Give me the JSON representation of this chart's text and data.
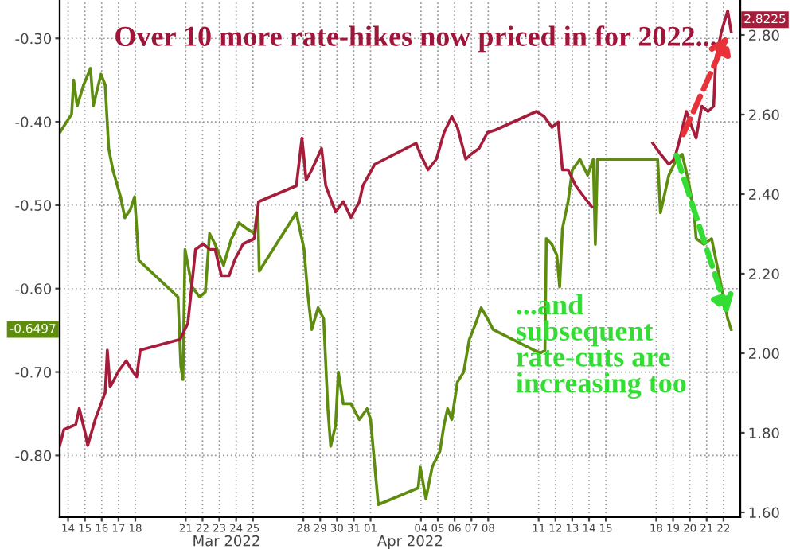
{
  "chart_data": {
    "type": "line",
    "title": "Over 10 more rate-hikes now priced in for 2022...",
    "annotations": [
      "...and\nsubsequent\nrate-cuts are\nincreasing too",
      "Mar 2022",
      "Apr 2022",
      "-0.6497",
      "2.8225"
    ],
    "xlim": [
      "2022-03-14",
      "2022-04-23T12:00"
    ],
    "xticks": [
      {
        "value": "2022-03-14T12:00",
        "label": "14"
      },
      {
        "value": "2022-03-15T12:00",
        "label": "15"
      },
      {
        "value": "2022-03-16T12:00",
        "label": "16"
      },
      {
        "value": "2022-03-17T12:00",
        "label": "17"
      },
      {
        "value": "2022-03-18T12:00",
        "label": "18"
      },
      {
        "value": "2022-03-21T12:00",
        "label": "21"
      },
      {
        "value": "2022-03-22T12:00",
        "label": "22"
      },
      {
        "value": "2022-03-23T12:00",
        "label": "23"
      },
      {
        "value": "2022-03-24T12:00",
        "label": "24"
      },
      {
        "value": "2022-03-25T12:00",
        "label": "25"
      },
      {
        "value": "2022-03-28T12:00",
        "label": "28"
      },
      {
        "value": "2022-03-29T12:00",
        "label": "29"
      },
      {
        "value": "2022-03-30T12:00",
        "label": "30"
      },
      {
        "value": "2022-03-31T12:00",
        "label": "31"
      },
      {
        "value": "2022-04-01T12:00",
        "label": "01"
      },
      {
        "value": "2022-04-04T12:00",
        "label": "04"
      },
      {
        "value": "2022-04-05T12:00",
        "label": "05"
      },
      {
        "value": "2022-04-06T12:00",
        "label": "06"
      },
      {
        "value": "2022-04-07T12:00",
        "label": "07"
      },
      {
        "value": "2022-04-08T12:00",
        "label": "08"
      },
      {
        "value": "2022-04-11T12:00",
        "label": "11"
      },
      {
        "value": "2022-04-12T12:00",
        "label": "12"
      },
      {
        "value": "2022-04-13T12:00",
        "label": "13"
      },
      {
        "value": "2022-04-14T12:00",
        "label": "14"
      },
      {
        "value": "2022-04-15T12:00",
        "label": "15"
      },
      {
        "value": "2022-04-18T12:00",
        "label": "18"
      },
      {
        "value": "2022-04-19T12:00",
        "label": "19"
      },
      {
        "value": "2022-04-20T12:00",
        "label": "20"
      },
      {
        "value": "2022-04-21T12:00",
        "label": "21"
      },
      {
        "value": "2022-04-22T12:00",
        "label": "22"
      }
    ],
    "ylim": [
      -0.874,
      -0.254
    ],
    "yticks": [
      {
        "value": -0.3,
        "label": "-0.30"
      },
      {
        "value": -0.4,
        "label": "-0.40"
      },
      {
        "value": -0.5,
        "label": "-0.50"
      },
      {
        "value": -0.6,
        "label": "-0.60"
      },
      {
        "value": -0.7,
        "label": "-0.70"
      },
      {
        "value": -0.8,
        "label": "-0.80"
      }
    ],
    "y2lim": [
      1.588,
      2.888
    ],
    "y2ticks": [
      {
        "value": 1.6,
        "label": "1.60"
      },
      {
        "value": 1.8,
        "label": "1.80"
      },
      {
        "value": 2.0,
        "label": "2.00"
      },
      {
        "value": 2.2,
        "label": "2.20"
      },
      {
        "value": 2.4,
        "label": "2.40"
      },
      {
        "value": 2.6,
        "label": "2.60"
      },
      {
        "value": 2.8,
        "label": "2.80"
      }
    ],
    "grid": true,
    "line_style": "solid",
    "series": [
      {
        "color": "#5e8c0e",
        "axis": "y",
        "x": [
          "2022-03-14T00:00",
          "2022-03-14T17:00",
          "2022-03-14T20:00",
          "2022-03-15T01:00",
          "2022-03-15T10:00",
          "2022-03-15T20:00",
          "2022-03-16T00:00",
          "2022-03-16T11:00",
          "2022-03-16T17:00",
          "2022-03-16T22:00",
          "2022-03-17T04:00",
          "2022-03-17T15:00",
          "2022-03-17T21:00",
          "2022-03-18T05:00",
          "2022-03-18T11:00",
          "2022-03-18T17:00",
          "2022-03-21T01:00",
          "2022-03-21T05:00",
          "2022-03-21T08:00",
          "2022-03-21T11:00",
          "2022-03-21T21:00",
          "2022-03-22T08:00",
          "2022-03-22T16:00",
          "2022-03-22T22:00",
          "2022-03-23T06:00",
          "2022-03-23T18:00",
          "2022-03-24T05:00",
          "2022-03-24T16:00",
          "2022-03-25T03:00",
          "2022-03-25T14:00",
          "2022-03-25T19:00",
          "2022-03-25T21:00",
          "2022-03-28T02:00",
          "2022-03-28T13:00",
          "2022-03-28T18:00",
          "2022-03-29T00:00",
          "2022-03-29T09:00",
          "2022-03-29T17:00",
          "2022-03-29T23:00",
          "2022-03-30T03:00",
          "2022-03-30T10:00",
          "2022-03-30T14:00",
          "2022-03-30T21:00",
          "2022-03-31T08:00",
          "2022-03-31T20:00",
          "2022-04-01T07:00",
          "2022-04-01T12:00",
          "2022-04-01T23:00",
          "2022-04-04T08:00",
          "2022-04-04T11:00",
          "2022-04-04T19:00",
          "2022-04-05T04:00",
          "2022-04-05T15:00",
          "2022-04-05T21:00",
          "2022-04-06T02:00",
          "2022-04-06T08:00",
          "2022-04-06T16:00",
          "2022-04-07T01:00",
          "2022-04-07T09:00",
          "2022-04-07T18:00",
          "2022-04-08T02:00",
          "2022-04-08T11:00",
          "2022-04-08T19:00",
          "2022-04-11T06:00",
          "2022-04-11T15:00",
          "2022-04-11T21:00",
          "2022-04-11T23:00",
          "2022-04-12T07:00",
          "2022-04-12T14:00",
          "2022-04-12T18:00",
          "2022-04-12T22:00",
          "2022-04-13T06:00",
          "2022-04-13T12:00",
          "2022-04-13T23:00",
          "2022-04-14T10:00",
          "2022-04-14T18:00",
          "2022-04-14T21:00",
          "2022-04-15T00:00",
          "2022-04-15T08:00",
          "2022-04-18T07:00",
          "2022-04-18T14:00",
          "2022-04-18T18:00",
          "2022-04-19T06:00",
          "2022-04-19T17:00",
          "2022-04-20T01:00",
          "2022-04-20T10:00",
          "2022-04-20T18:00",
          "2022-04-20T21:00",
          "2022-04-21T08:00",
          "2022-04-21T19:00",
          "2022-04-22T06:00",
          "2022-04-22T12:00",
          "2022-04-22T18:00",
          "2022-04-22T23:00"
        ],
        "values": [
          -0.413,
          -0.391,
          -0.35,
          -0.381,
          -0.356,
          -0.336,
          -0.381,
          -0.343,
          -0.356,
          -0.432,
          -0.458,
          -0.49,
          -0.515,
          -0.505,
          -0.49,
          -0.566,
          -0.61,
          -0.693,
          -0.709,
          -0.553,
          -0.598,
          -0.61,
          -0.604,
          -0.534,
          -0.547,
          -0.572,
          -0.541,
          -0.521,
          -0.528,
          -0.534,
          -0.502,
          -0.579,
          -0.509,
          -0.553,
          -0.604,
          -0.649,
          -0.623,
          -0.636,
          -0.744,
          -0.789,
          -0.764,
          -0.7,
          -0.738,
          -0.738,
          -0.757,
          -0.744,
          -0.757,
          -0.859,
          -0.839,
          -0.814,
          -0.852,
          -0.814,
          -0.795,
          -0.763,
          -0.744,
          -0.757,
          -0.712,
          -0.7,
          -0.661,
          -0.642,
          -0.623,
          -0.636,
          -0.649,
          -0.674,
          -0.677,
          -0.674,
          -0.54,
          -0.547,
          -0.56,
          -0.598,
          -0.528,
          -0.496,
          -0.458,
          -0.445,
          -0.464,
          -0.445,
          -0.547,
          -0.445,
          -0.445,
          -0.445,
          -0.445,
          -0.509,
          -0.464,
          -0.445,
          -0.439,
          -0.471,
          -0.509,
          -0.54,
          -0.547,
          -0.54,
          -0.585,
          -0.61,
          -0.636,
          -0.649
        ]
      },
      {
        "color": "#a51d3a",
        "axis": "y2",
        "x": [
          "2022-03-14T00:00",
          "2022-03-14T06:00",
          "2022-03-14T23:00",
          "2022-03-15T04:00",
          "2022-03-15T13:00",
          "2022-03-15T16:00",
          "2022-03-16T03:00",
          "2022-03-16T17:00",
          "2022-03-16T20:00",
          "2022-03-17T00:00",
          "2022-03-17T12:00",
          "2022-03-17T23:00",
          "2022-03-18T08:00",
          "2022-03-18T14:00",
          "2022-03-18T19:00",
          "2022-03-21T04:00",
          "2022-03-21T15:00",
          "2022-03-22T02:00",
          "2022-03-22T13:00",
          "2022-03-22T22:00",
          "2022-03-23T06:00",
          "2022-03-23T15:00",
          "2022-03-24T02:00",
          "2022-03-24T10:00",
          "2022-03-24T22:00",
          "2022-03-25T14:00",
          "2022-03-25T20:00",
          "2022-03-28T02:00",
          "2022-03-28T10:00",
          "2022-03-28T16:00",
          "2022-03-29T00:00",
          "2022-03-29T14:00",
          "2022-03-29T20:00",
          "2022-03-30T10:00",
          "2022-03-30T21:00",
          "2022-03-31T08:00",
          "2022-03-31T20:00",
          "2022-04-01T01:00",
          "2022-04-01T18:00",
          "2022-04-04T05:00",
          "2022-04-04T11:00",
          "2022-04-04T22:00",
          "2022-04-05T10:00",
          "2022-04-05T21:00",
          "2022-04-06T08:00",
          "2022-04-06T16:00",
          "2022-04-07T04:00",
          "2022-04-07T12:00",
          "2022-04-07T23:00",
          "2022-04-08T11:00",
          "2022-04-08T22:00",
          "2022-04-11T09:00",
          "2022-04-11T20:00",
          "2022-04-12T07:00",
          "2022-04-12T16:00",
          "2022-04-12T22:00",
          "2022-04-13T06:00",
          "2022-04-13T17:00",
          "2022-04-14T04:00",
          "2022-04-14T16:00",
          "2022-04-15T12:00",
          "2022-04-18T07:00",
          "2022-04-18T18:00",
          "2022-04-19T06:00",
          "2022-04-19T14:00",
          "2022-04-19T22:00",
          "2022-04-20T07:00",
          "2022-04-20T15:00",
          "2022-04-20T21:00",
          "2022-04-21T05:00",
          "2022-04-21T14:00",
          "2022-04-21T22:00",
          "2022-04-22T01:00",
          "2022-04-22T09:00",
          "2022-04-22T18:00",
          "2022-04-22T23:00"
        ],
        "values": [
          1.768,
          1.808,
          1.821,
          1.861,
          1.795,
          1.768,
          1.835,
          1.901,
          2.008,
          1.915,
          1.955,
          1.981,
          1.955,
          1.941,
          2.008,
          2.035,
          2.075,
          2.261,
          2.275,
          2.261,
          2.261,
          2.195,
          2.195,
          2.235,
          2.275,
          2.288,
          2.381,
          2.421,
          2.541,
          2.435,
          2.461,
          2.515,
          2.421,
          2.355,
          2.381,
          2.341,
          2.381,
          2.421,
          2.475,
          2.528,
          2.501,
          2.461,
          2.488,
          2.555,
          2.595,
          2.568,
          2.488,
          2.501,
          2.515,
          2.555,
          2.561,
          2.608,
          2.595,
          2.568,
          2.581,
          2.461,
          2.461,
          2.421,
          2.395,
          2.368,
          null,
          2.528,
          2.501,
          2.475,
          2.488,
          2.541,
          2.608,
          2.568,
          2.541,
          2.621,
          2.608,
          2.621,
          2.741,
          2.808,
          2.861,
          2.808
        ]
      }
    ]
  }
}
